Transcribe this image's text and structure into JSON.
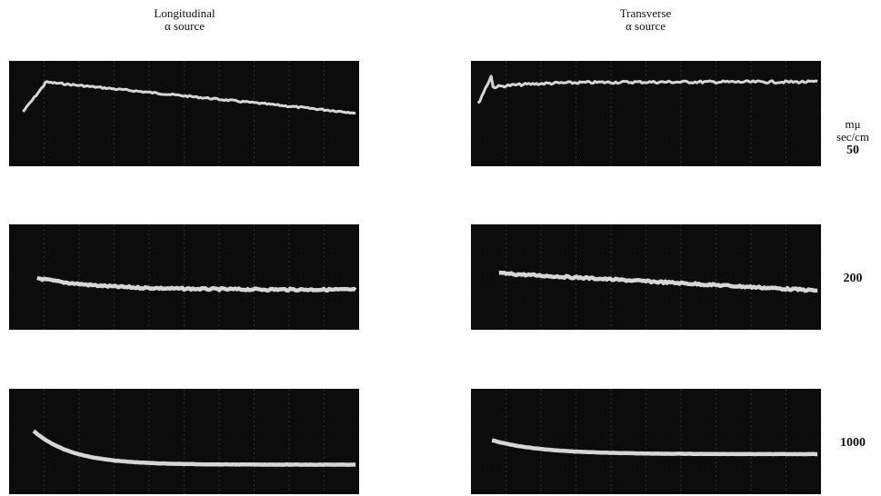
{
  "columns": [
    {
      "title": "Longitudinal",
      "subtitle": "α source"
    },
    {
      "title": "Transverse",
      "subtitle": "α source"
    }
  ],
  "rows": [
    {
      "unit_lines": [
        "mμ",
        "sec/cm"
      ],
      "label": "50"
    },
    {
      "label": "200"
    },
    {
      "label": "1000"
    }
  ]
}
